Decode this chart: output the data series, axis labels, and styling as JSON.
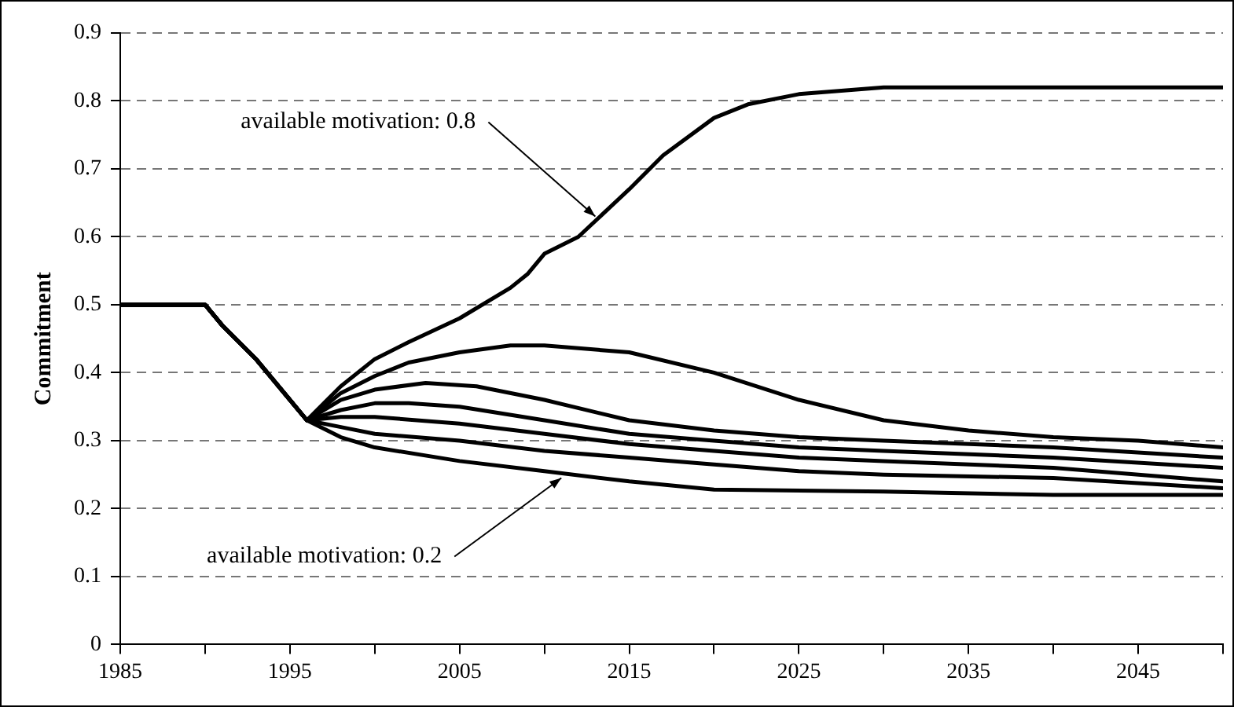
{
  "chart_data": {
    "type": "line",
    "ylabel": "Commitment",
    "xlim": [
      1985,
      2050
    ],
    "ylim": [
      0,
      0.9
    ],
    "xticks": [
      1985,
      {
        "value": 1990,
        "label": null
      },
      1995,
      {
        "value": 2000,
        "label": null
      },
      2005,
      {
        "value": 2010,
        "label": null
      },
      2015,
      {
        "value": 2020,
        "label": null
      },
      2025,
      {
        "value": 2030,
        "label": null
      },
      2035,
      {
        "value": 2040,
        "label": null
      },
      2045,
      {
        "value": 2050,
        "label": null
      }
    ],
    "yticks": [
      0,
      0.1,
      0.2,
      0.3,
      0.4,
      0.5,
      0.6,
      0.7,
      0.8,
      0.9
    ],
    "grid": "y",
    "marker": "none",
    "line_style": "solid",
    "legend": false,
    "series": [
      {
        "color": "#000000",
        "x": [
          1985,
          1990,
          1991,
          1993,
          1996,
          1998,
          2000,
          2002,
          2005,
          2008,
          2009,
          2010,
          2012,
          2015,
          2017,
          2020,
          2022,
          2025,
          2030,
          2040,
          2050
        ],
        "values": [
          0.5,
          0.5,
          0.47,
          0.42,
          0.33,
          0.38,
          0.42,
          0.445,
          0.48,
          0.525,
          0.545,
          0.575,
          0.6,
          0.67,
          0.72,
          0.775,
          0.795,
          0.81,
          0.82,
          0.82,
          0.82
        ]
      },
      {
        "color": "#000000",
        "x": [
          1985,
          1990,
          1991,
          1993,
          1996,
          1998,
          2000,
          2002,
          2005,
          2008,
          2010,
          2015,
          2020,
          2025,
          2030,
          2035,
          2040,
          2045,
          2050
        ],
        "values": [
          0.5,
          0.5,
          0.47,
          0.42,
          0.33,
          0.37,
          0.395,
          0.415,
          0.43,
          0.44,
          0.44,
          0.43,
          0.4,
          0.36,
          0.33,
          0.315,
          0.305,
          0.3,
          0.29
        ]
      },
      {
        "color": "#000000",
        "x": [
          1985,
          1990,
          1991,
          1993,
          1996,
          1998,
          2000,
          2003,
          2006,
          2010,
          2015,
          2020,
          2025,
          2030,
          2040,
          2050
        ],
        "values": [
          0.5,
          0.5,
          0.47,
          0.42,
          0.33,
          0.36,
          0.375,
          0.385,
          0.38,
          0.36,
          0.33,
          0.315,
          0.305,
          0.3,
          0.29,
          0.275
        ]
      },
      {
        "color": "#000000",
        "x": [
          1985,
          1990,
          1991,
          1993,
          1996,
          1998,
          2000,
          2002,
          2005,
          2010,
          2015,
          2020,
          2025,
          2030,
          2040,
          2050
        ],
        "values": [
          0.5,
          0.5,
          0.47,
          0.42,
          0.33,
          0.345,
          0.355,
          0.355,
          0.35,
          0.33,
          0.31,
          0.3,
          0.29,
          0.285,
          0.275,
          0.26
        ]
      },
      {
        "color": "#000000",
        "x": [
          1985,
          1990,
          1991,
          1993,
          1996,
          1998,
          2000,
          2005,
          2010,
          2015,
          2020,
          2025,
          2030,
          2040,
          2050
        ],
        "values": [
          0.5,
          0.5,
          0.47,
          0.42,
          0.33,
          0.335,
          0.335,
          0.325,
          0.31,
          0.295,
          0.285,
          0.275,
          0.27,
          0.26,
          0.24
        ]
      },
      {
        "color": "#000000",
        "x": [
          1985,
          1990,
          1991,
          1993,
          1996,
          1998,
          2000,
          2005,
          2010,
          2015,
          2020,
          2025,
          2030,
          2040,
          2050
        ],
        "values": [
          0.5,
          0.5,
          0.47,
          0.42,
          0.33,
          0.32,
          0.31,
          0.3,
          0.285,
          0.275,
          0.265,
          0.255,
          0.25,
          0.245,
          0.23
        ]
      },
      {
        "color": "#000000",
        "x": [
          1985,
          1990,
          1991,
          1993,
          1996,
          1998,
          2000,
          2005,
          2010,
          2015,
          2020,
          2030,
          2040,
          2050
        ],
        "values": [
          0.5,
          0.5,
          0.47,
          0.42,
          0.33,
          0.305,
          0.29,
          0.27,
          0.255,
          0.24,
          0.228,
          0.225,
          0.22,
          0.22
        ]
      }
    ],
    "annotations": [
      {
        "text": "available motivation: 0.8",
        "x": 2013,
        "y": 0.63
      },
      {
        "text": "available motivation: 0.2",
        "x": 2011,
        "y": 0.245
      }
    ]
  }
}
